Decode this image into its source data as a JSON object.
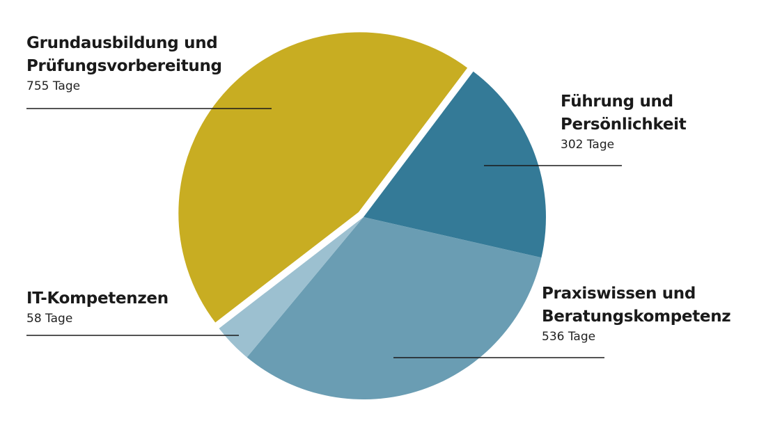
{
  "chart_data": {
    "type": "pie",
    "categories": [
      "Führung und Persönlichkeit",
      "Praxiswissen und Beratungskompetenz",
      "IT-Kompetenzen",
      "Grundausbildung und Prüfungsvorbereitung"
    ],
    "values": [
      302,
      536,
      58,
      755
    ],
    "value_labels": [
      "302 Tage",
      "536 Tage",
      "58 Tage",
      "755 Tage"
    ],
    "colors": [
      "#347a97",
      "#6a9db3",
      "#9cc0d0",
      "#c8ad22"
    ]
  }
}
